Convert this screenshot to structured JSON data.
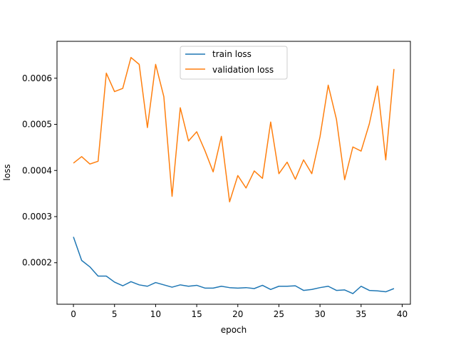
{
  "chart_data": {
    "type": "line",
    "title": "",
    "xlabel": "epoch",
    "ylabel": "loss",
    "xlim": [
      -2,
      41
    ],
    "ylim": [
      0.00011,
      0.00068
    ],
    "xticks": [
      0,
      5,
      10,
      15,
      20,
      25,
      30,
      35,
      40
    ],
    "yticks": [
      0.0002,
      0.0003,
      0.0004,
      0.0005,
      0.0006
    ],
    "ytick_labels": [
      "0.0002",
      "0.0003",
      "0.0004",
      "0.0005",
      "0.0006"
    ],
    "grid": false,
    "legend_position": "top-center",
    "x": [
      0,
      1,
      2,
      3,
      4,
      5,
      6,
      7,
      8,
      9,
      10,
      11,
      12,
      13,
      14,
      15,
      16,
      17,
      18,
      19,
      20,
      21,
      22,
      23,
      24,
      25,
      26,
      27,
      28,
      29,
      30,
      31,
      32,
      33,
      34,
      35,
      36,
      37,
      38,
      39
    ],
    "series": [
      {
        "name": "train loss",
        "color": "#1f77b4",
        "values": [
          0.000256,
          0.000205,
          0.000191,
          0.000171,
          0.000171,
          0.000158,
          0.00015,
          0.000159,
          0.000152,
          0.000149,
          0.000157,
          0.000152,
          0.000147,
          0.000152,
          0.000149,
          0.000151,
          0.000145,
          0.000145,
          0.000149,
          0.000146,
          0.000145,
          0.000146,
          0.000144,
          0.000151,
          0.000142,
          0.000149,
          0.000149,
          0.00015,
          0.00014,
          0.000142,
          0.000146,
          0.000149,
          0.00014,
          0.000141,
          0.000133,
          0.000149,
          0.00014,
          0.000139,
          0.000137,
          0.000144
        ]
      },
      {
        "name": "validation loss",
        "color": "#ff7f0e",
        "values": [
          0.000416,
          0.00043,
          0.000414,
          0.00042,
          0.000611,
          0.000571,
          0.000578,
          0.000645,
          0.00063,
          0.000493,
          0.00063,
          0.00056,
          0.000344,
          0.000536,
          0.000464,
          0.000484,
          0.000443,
          0.000397,
          0.000474,
          0.000332,
          0.000389,
          0.000362,
          0.000399,
          0.000383,
          0.000505,
          0.000393,
          0.000418,
          0.000381,
          0.000423,
          0.000393,
          0.000473,
          0.000585,
          0.000511,
          0.00038,
          0.000451,
          0.000442,
          0.000501,
          0.000583,
          0.000423,
          0.00062
        ]
      }
    ]
  }
}
